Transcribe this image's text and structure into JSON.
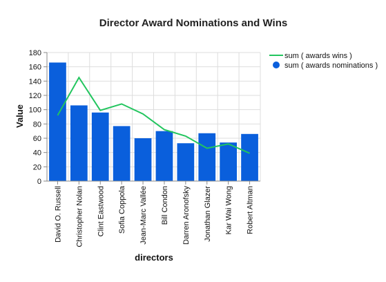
{
  "chart_data": {
    "type": "bar",
    "title": "Director Award Nominations and Wins",
    "xlabel": "directors",
    "ylabel": "Value",
    "ylim": [
      0,
      180
    ],
    "yticks": [
      0,
      20,
      40,
      60,
      80,
      100,
      120,
      140,
      160,
      180
    ],
    "grid": true,
    "legend_position": "top-right",
    "categories": [
      "David O. Russell",
      "Christopher Nolan",
      "Clint Eastwood",
      "Sofia Coppola",
      "Jean-Marc Vallée",
      "Bill Condon",
      "Darren Aronofsky",
      "Jonathan Glazer",
      "Kar Wai Wong",
      "Robert Altman"
    ],
    "series": [
      {
        "name": "sum ( awards wins )",
        "type": "line",
        "color": "#22c55e",
        "values": [
          92,
          145,
          99,
          108,
          94,
          72,
          63,
          46,
          52,
          39
        ]
      },
      {
        "name": "sum ( awards nominations )",
        "type": "bar",
        "color": "#0a5fdc",
        "values": [
          166,
          106,
          96,
          77,
          60,
          70,
          53,
          67,
          54,
          66
        ]
      }
    ]
  }
}
